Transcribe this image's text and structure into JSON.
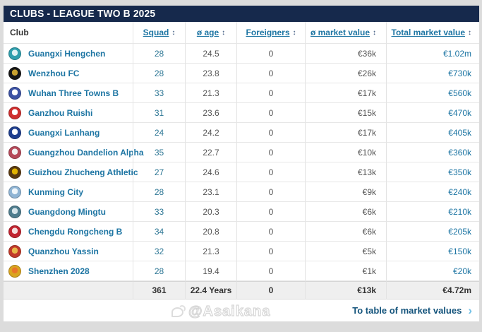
{
  "title": "CLUBS - LEAGUE TWO B 2025",
  "table": {
    "sort_icon": "↕",
    "columns": {
      "club": "Club",
      "squad": "Squad",
      "age": "ø age",
      "foreigners": "Foreigners",
      "market_value": "ø market value",
      "total_market_value": "Total market value"
    },
    "rows": [
      {
        "club": "Guangxi Hengchen",
        "squad": "28",
        "age": "24.5",
        "foreigners": "0",
        "mv": "€36k",
        "total": "€1.02m",
        "crest_primary": "#2f9fae",
        "crest_secondary": "#dff2f4"
      },
      {
        "club": "Wenzhou FC",
        "squad": "28",
        "age": "23.8",
        "foreigners": "0",
        "mv": "€26k",
        "total": "€730k",
        "crest_primary": "#161616",
        "crest_secondary": "#c9a22f"
      },
      {
        "club": "Wuhan Three Towns B",
        "squad": "33",
        "age": "21.3",
        "foreigners": "0",
        "mv": "€17k",
        "total": "€560k",
        "crest_primary": "#3c52a4",
        "crest_secondary": "#ffffff"
      },
      {
        "club": "Ganzhou Ruishi",
        "squad": "31",
        "age": "23.6",
        "foreigners": "0",
        "mv": "€15k",
        "total": "€470k",
        "crest_primary": "#cf2e2e",
        "crest_secondary": "#ffffff"
      },
      {
        "club": "Guangxi Lanhang",
        "squad": "24",
        "age": "24.2",
        "foreigners": "0",
        "mv": "€17k",
        "total": "€405k",
        "crest_primary": "#1f3f8f",
        "crest_secondary": "#ffffff"
      },
      {
        "club": "Guangzhou Dandelion Alpha",
        "squad": "35",
        "age": "22.7",
        "foreigners": "0",
        "mv": "€10k",
        "total": "€360k",
        "crest_primary": "#b64a5a",
        "crest_secondary": "#f2f2f2"
      },
      {
        "club": "Guizhou Zhucheng Athletic",
        "squad": "27",
        "age": "24.6",
        "foreigners": "0",
        "mv": "€13k",
        "total": "€350k",
        "crest_primary": "#5a3a10",
        "crest_secondary": "#e3b400"
      },
      {
        "club": "Kunming City",
        "squad": "28",
        "age": "23.1",
        "foreigners": "0",
        "mv": "€9k",
        "total": "€240k",
        "crest_primary": "#8fb4d4",
        "crest_secondary": "#eef5fa"
      },
      {
        "club": "Guangdong Mingtu",
        "squad": "33",
        "age": "20.3",
        "foreigners": "0",
        "mv": "€6k",
        "total": "€210k",
        "crest_primary": "#4f7d8e",
        "crest_secondary": "#d7e5ea"
      },
      {
        "club": "Chengdu Rongcheng B",
        "squad": "34",
        "age": "20.8",
        "foreigners": "0",
        "mv": "€6k",
        "total": "€205k",
        "crest_primary": "#c22430",
        "crest_secondary": "#f5dede"
      },
      {
        "club": "Quanzhou Yassin",
        "squad": "32",
        "age": "21.3",
        "foreigners": "0",
        "mv": "€5k",
        "total": "€150k",
        "crest_primary": "#c23a2a",
        "crest_secondary": "#e8b84a"
      },
      {
        "club": "Shenzhen 2028",
        "squad": "28",
        "age": "19.4",
        "foreigners": "0",
        "mv": "€1k",
        "total": "€20k",
        "crest_primary": "#d9a520",
        "crest_secondary": "#e8762a"
      }
    ],
    "totals": {
      "squad": "361",
      "age": "22.4 Years",
      "foreigners": "0",
      "mv": "€13k",
      "total": "€4.72m"
    }
  },
  "footer_link": {
    "label": "To table of market values",
    "chevron": "›"
  },
  "watermark": "@Asaikana",
  "colors": {
    "header_bg": "#16294c",
    "link": "#1d75a3",
    "footer_link": "#14547c",
    "chevron": "#71c0e7",
    "totals_bg": "#efefef"
  }
}
